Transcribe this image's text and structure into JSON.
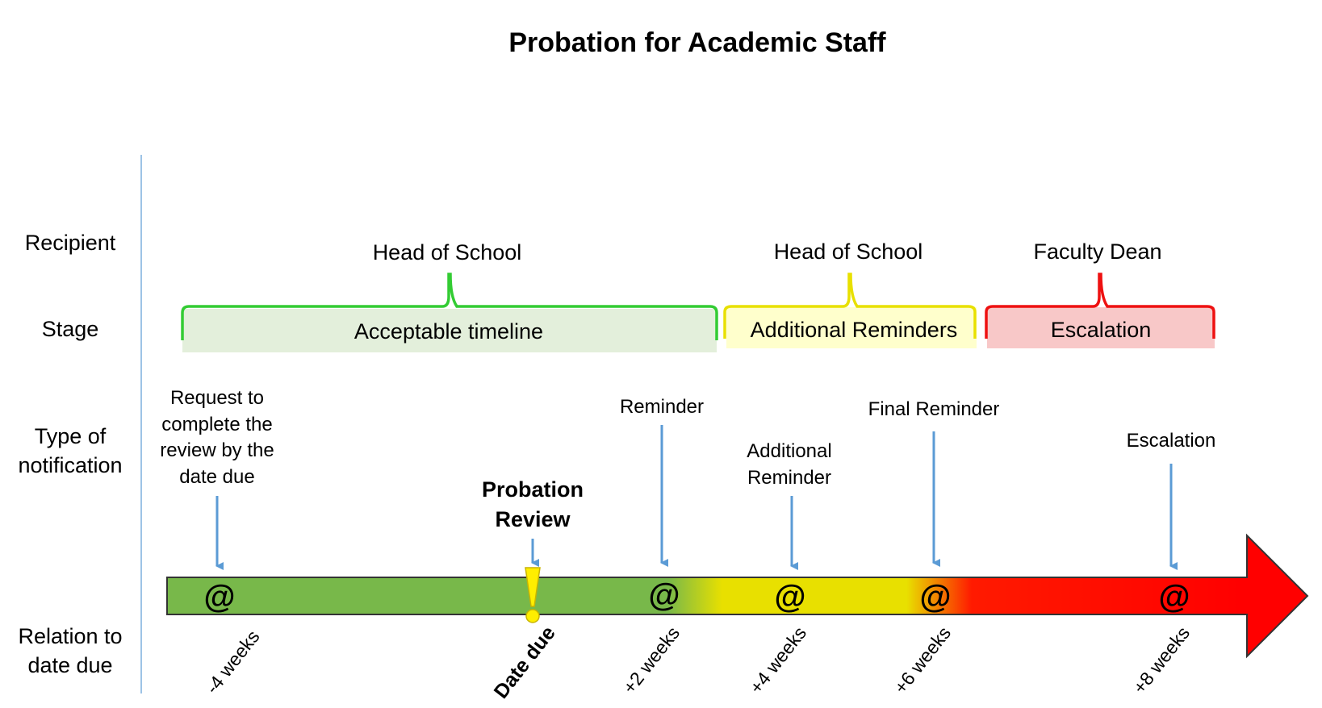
{
  "title": "Probation for Academic Staff",
  "row_labels": {
    "recipient": "Recipient",
    "stage": "Stage",
    "type_line1": "Type of",
    "type_line2": "notification",
    "relation_line1": "Relation to",
    "relation_line2": "date due"
  },
  "recipients": {
    "acceptable": "Head of School",
    "additional": "Head of School",
    "escalation": "Faculty Dean"
  },
  "stages": {
    "acceptable": "Acceptable timeline",
    "additional": "Additional Reminders",
    "escalation": "Escalation"
  },
  "notifications": {
    "request": [
      "Request to",
      "complete the",
      "review by the",
      "date due"
    ],
    "review": [
      "Probation",
      "Review"
    ],
    "reminder": [
      "Reminder"
    ],
    "additional": [
      "Additional",
      "Reminder"
    ],
    "final": [
      "Final Reminder"
    ],
    "escalation": [
      "Escalation"
    ]
  },
  "relations": {
    "minus4": "-4 weeks",
    "due": "Date due",
    "plus2": "+2 weeks",
    "plus4": "+4 weeks",
    "plus6": "+6 weeks",
    "plus8": "+8 weeks"
  },
  "email_symbol": "@",
  "warning_symbol": "!",
  "colors": {
    "green": "#78b84a",
    "yellow": "#e8e000",
    "red": "#ff0000",
    "bracket_green": "#33cc33",
    "bracket_yellow": "#e8e000",
    "bracket_red": "#ee1111",
    "fill_green": "#e3efdb",
    "fill_yellow": "#ffffcc",
    "fill_red": "#f8c8c8",
    "arrow_blue": "#5b9bd5",
    "divider": "#9dc3e6"
  }
}
